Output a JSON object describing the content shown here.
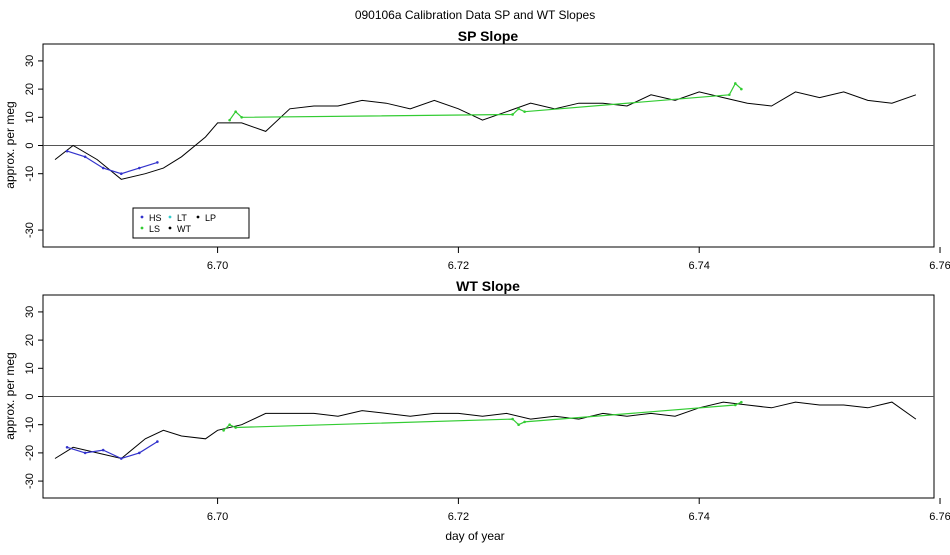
{
  "page_title": "090106a   Calibration Data SP and WT Slopes",
  "x_axis_label": "day of year",
  "legend": {
    "entries": [
      {
        "label": "HS",
        "color": "#3333cc"
      },
      {
        "label": "LT",
        "color": "#33cccc"
      },
      {
        "label": "LP",
        "color": "#000000"
      },
      {
        "label": "LS",
        "color": "#33cc33"
      },
      {
        "label": "WT",
        "color": "#000000"
      }
    ]
  },
  "chart_data": [
    {
      "type": "line",
      "title": "SP Slope",
      "xlabel": "",
      "ylabel": "approx. per meg",
      "xlim": [
        6.6855,
        6.7595
      ],
      "ylim": [
        -36,
        36
      ],
      "xticks": [
        6.7,
        6.72,
        6.74,
        6.76
      ],
      "xtick_labels": [
        "6.70",
        "6.72",
        "6.74",
        "6.76"
      ],
      "yticks": [
        -30,
        -10,
        0,
        10,
        20,
        30
      ],
      "ytick_labels": [
        "-30",
        "-10",
        "0",
        "10",
        "20",
        "30"
      ],
      "hline": 0,
      "legend": "bottom-left",
      "series": [
        {
          "color": "#000000",
          "x": [
            6.6865,
            6.688,
            6.69,
            6.692,
            6.694,
            6.6955,
            6.697,
            6.699,
            6.7,
            6.702,
            6.704,
            6.706,
            6.708,
            6.71,
            6.712,
            6.714,
            6.716,
            6.718,
            6.72,
            6.722,
            6.724,
            6.726,
            6.728,
            6.73,
            6.732,
            6.734,
            6.736,
            6.738,
            6.74,
            6.742,
            6.744,
            6.746,
            6.748,
            6.75,
            6.752,
            6.754,
            6.756,
            6.758
          ],
          "values": [
            -5,
            0,
            -5,
            -12,
            -10,
            -8,
            -4,
            3,
            8,
            8,
            5,
            13,
            14,
            14,
            16,
            15,
            13,
            16,
            13,
            9,
            12,
            15,
            13,
            15,
            15,
            14,
            18,
            16,
            19,
            17,
            15,
            14,
            19,
            17,
            19,
            16,
            15,
            18
          ]
        },
        {
          "color": "#3333cc",
          "x": [
            6.6875,
            6.689,
            6.6905,
            6.692,
            6.6935,
            6.695
          ],
          "values": [
            -2,
            -4,
            -8,
            -10,
            -8,
            -6
          ]
        },
        {
          "color": "#33cc33",
          "x": [
            6.701,
            6.7015,
            6.702,
            6.7245,
            6.725,
            6.7255,
            6.7425,
            6.743,
            6.7435
          ],
          "values": [
            9,
            12,
            10,
            11,
            13,
            12,
            18,
            22,
            20
          ]
        }
      ]
    },
    {
      "type": "line",
      "title": "WT Slope",
      "xlabel": "day of year",
      "ylabel": "approx. per meg",
      "xlim": [
        6.6855,
        6.7595
      ],
      "ylim": [
        -36,
        36
      ],
      "xticks": [
        6.7,
        6.72,
        6.74,
        6.76
      ],
      "xtick_labels": [
        "6.70",
        "6.72",
        "6.74",
        "6.76"
      ],
      "yticks": [
        -30,
        -20,
        -10,
        0,
        10,
        20,
        30
      ],
      "ytick_labels": [
        "-30",
        "-20",
        "-10",
        "0",
        "10",
        "20",
        "30"
      ],
      "hline": 0,
      "series": [
        {
          "color": "#000000",
          "x": [
            6.6865,
            6.688,
            6.69,
            6.692,
            6.694,
            6.6955,
            6.697,
            6.699,
            6.7,
            6.702,
            6.704,
            6.706,
            6.708,
            6.71,
            6.712,
            6.714,
            6.716,
            6.718,
            6.72,
            6.722,
            6.724,
            6.726,
            6.728,
            6.73,
            6.732,
            6.734,
            6.736,
            6.738,
            6.74,
            6.742,
            6.744,
            6.746,
            6.748,
            6.75,
            6.752,
            6.754,
            6.756,
            6.758
          ],
          "values": [
            -22,
            -18,
            -20,
            -22,
            -15,
            -12,
            -14,
            -15,
            -12,
            -10,
            -6,
            -6,
            -6,
            -7,
            -5,
            -6,
            -7,
            -6,
            -6,
            -7,
            -6,
            -8,
            -7,
            -8,
            -6,
            -7,
            -6,
            -7,
            -4,
            -2,
            -3,
            -4,
            -2,
            -3,
            -3,
            -4,
            -2,
            -8
          ]
        },
        {
          "color": "#3333cc",
          "x": [
            6.6875,
            6.689,
            6.6905,
            6.692,
            6.6935,
            6.695
          ],
          "values": [
            -18,
            -20,
            -19,
            -22,
            -20,
            -16
          ]
        },
        {
          "color": "#33cc33",
          "x": [
            6.7005,
            6.701,
            6.7015,
            6.7245,
            6.725,
            6.7255,
            6.743,
            6.7435
          ],
          "values": [
            -12,
            -10,
            -11,
            -8,
            -10,
            -9,
            -3,
            -2
          ]
        }
      ]
    }
  ]
}
